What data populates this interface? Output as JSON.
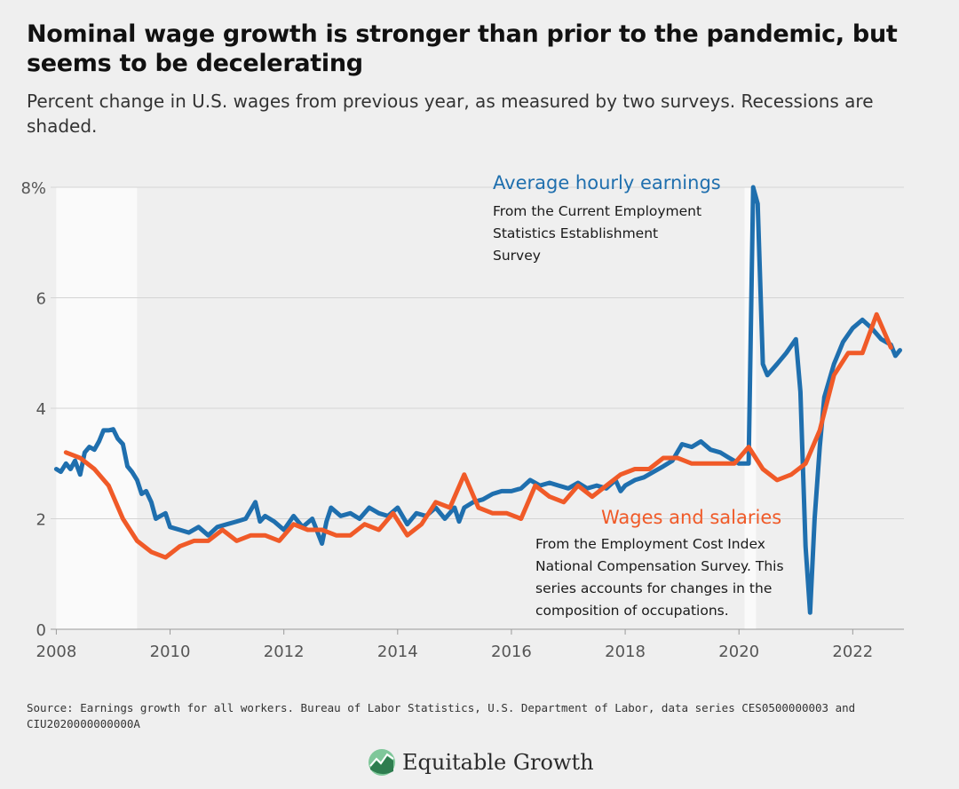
{
  "header": {
    "title": "Nominal wage growth is stronger than prior to the pandemic, but seems to be decelerating",
    "subtitle": "Percent change in U.S. wages from previous year, as measured by two surveys. Recessions are shaded."
  },
  "footer": {
    "source": "Source: Earnings growth for all workers. Bureau of Labor Statistics, U.S. Department of Labor, data series CES0500000003 and CIU2020000000000A",
    "brand": "Equitable Growth"
  },
  "colors": {
    "ahe": "#1f6fae",
    "eci": "#f05a28",
    "recession": "#fafafa",
    "grid": "#d4d4d4",
    "background": "#efefef",
    "logo_dark": "#2e7d4f",
    "logo_light": "#7fc79a"
  },
  "chart_data": {
    "type": "line",
    "title": "Nominal wage growth is stronger than prior to the pandemic, but seems to be decelerating",
    "subtitle": "Percent change in U.S. wages from previous year, as measured by two surveys. Recessions are shaded.",
    "xlabel": "",
    "ylabel": "",
    "xlim": [
      2007.9,
      2022.9
    ],
    "ylim": [
      0,
      8
    ],
    "x_ticks": [
      2008,
      2010,
      2012,
      2014,
      2016,
      2018,
      2020,
      2022
    ],
    "x_tick_labels": [
      "2008",
      "2010",
      "2012",
      "2014",
      "2016",
      "2018",
      "2020",
      "2022"
    ],
    "y_ticks": [
      0,
      2,
      4,
      6,
      8
    ],
    "y_tick_labels": [
      "0",
      "2",
      "4",
      "6",
      "8%"
    ],
    "grid": true,
    "recessions": [
      [
        2008.0,
        2009.42
      ],
      [
        2020.1,
        2020.3
      ]
    ],
    "series": [
      {
        "name": "Average hourly earnings",
        "note": "From the Current Employment Statistics Establishment Survey",
        "color": "#1f6fae",
        "x": [
          2008.0,
          2008.08,
          2008.17,
          2008.25,
          2008.33,
          2008.42,
          2008.5,
          2008.58,
          2008.67,
          2008.75,
          2008.83,
          2008.92,
          2009.0,
          2009.08,
          2009.17,
          2009.25,
          2009.33,
          2009.42,
          2009.5,
          2009.58,
          2009.67,
          2009.75,
          2009.83,
          2009.92,
          2010.0,
          2010.17,
          2010.33,
          2010.5,
          2010.67,
          2010.83,
          2011.0,
          2011.17,
          2011.33,
          2011.5,
          2011.58,
          2011.67,
          2011.83,
          2012.0,
          2012.17,
          2012.33,
          2012.5,
          2012.67,
          2012.75,
          2012.83,
          2013.0,
          2013.17,
          2013.33,
          2013.5,
          2013.67,
          2013.83,
          2014.0,
          2014.17,
          2014.33,
          2014.5,
          2014.67,
          2014.83,
          2015.0,
          2015.08,
          2015.17,
          2015.33,
          2015.5,
          2015.67,
          2015.83,
          2016.0,
          2016.17,
          2016.33,
          2016.5,
          2016.67,
          2016.83,
          2017.0,
          2017.17,
          2017.33,
          2017.5,
          2017.67,
          2017.83,
          2017.92,
          2018.0,
          2018.17,
          2018.33,
          2018.5,
          2018.67,
          2018.83,
          2019.0,
          2019.17,
          2019.33,
          2019.5,
          2019.67,
          2019.83,
          2020.0,
          2020.17,
          2020.25,
          2020.33,
          2020.42,
          2020.5,
          2020.67,
          2020.83,
          2021.0,
          2021.08,
          2021.17,
          2021.25,
          2021.33,
          2021.42,
          2021.5,
          2021.67,
          2021.83,
          2022.0,
          2022.17,
          2022.33,
          2022.5,
          2022.67,
          2022.75,
          2022.83
        ],
        "values": [
          2.9,
          2.85,
          3.0,
          2.9,
          3.05,
          2.8,
          3.2,
          3.3,
          3.25,
          3.4,
          3.6,
          3.6,
          3.62,
          3.45,
          3.35,
          2.95,
          2.85,
          2.7,
          2.45,
          2.5,
          2.3,
          2.0,
          2.05,
          2.1,
          1.85,
          1.8,
          1.75,
          1.85,
          1.7,
          1.85,
          1.9,
          1.95,
          2.0,
          2.3,
          1.95,
          2.05,
          1.95,
          1.8,
          2.05,
          1.85,
          2.0,
          1.55,
          1.95,
          2.2,
          2.05,
          2.1,
          2.0,
          2.2,
          2.1,
          2.05,
          2.2,
          1.9,
          2.1,
          2.05,
          2.2,
          2.0,
          2.2,
          1.95,
          2.2,
          2.3,
          2.35,
          2.45,
          2.5,
          2.5,
          2.55,
          2.7,
          2.6,
          2.65,
          2.6,
          2.55,
          2.65,
          2.55,
          2.6,
          2.55,
          2.7,
          2.5,
          2.6,
          2.7,
          2.75,
          2.85,
          2.95,
          3.05,
          3.35,
          3.3,
          3.4,
          3.25,
          3.2,
          3.1,
          3.0,
          3.0,
          8.0,
          7.7,
          4.8,
          4.6,
          4.8,
          5.0,
          5.25,
          4.3,
          1.5,
          0.3,
          2.0,
          3.3,
          4.2,
          4.8,
          5.2,
          5.45,
          5.6,
          5.45,
          5.25,
          5.15,
          4.95,
          5.05
        ]
      },
      {
        "name": "Wages and salaries",
        "note": "From the Employment Cost Index National Compensation Survey. This series accounts for changes in the composition of occupations.",
        "color": "#f05a28",
        "x": [
          2008.17,
          2008.42,
          2008.67,
          2008.92,
          2009.17,
          2009.42,
          2009.67,
          2009.92,
          2010.17,
          2010.42,
          2010.67,
          2010.92,
          2011.17,
          2011.42,
          2011.67,
          2011.92,
          2012.17,
          2012.42,
          2012.67,
          2012.92,
          2013.17,
          2013.42,
          2013.67,
          2013.92,
          2014.17,
          2014.42,
          2014.67,
          2014.92,
          2015.17,
          2015.42,
          2015.67,
          2015.92,
          2016.17,
          2016.42,
          2016.67,
          2016.92,
          2017.17,
          2017.42,
          2017.67,
          2017.92,
          2018.17,
          2018.42,
          2018.67,
          2018.92,
          2019.17,
          2019.42,
          2019.67,
          2019.92,
          2020.17,
          2020.42,
          2020.67,
          2020.92,
          2021.17,
          2021.42,
          2021.67,
          2021.92,
          2022.17,
          2022.42,
          2022.67
        ],
        "values": [
          3.2,
          3.1,
          2.9,
          2.6,
          2.0,
          1.6,
          1.4,
          1.3,
          1.5,
          1.6,
          1.6,
          1.8,
          1.6,
          1.7,
          1.7,
          1.6,
          1.9,
          1.8,
          1.8,
          1.7,
          1.7,
          1.9,
          1.8,
          2.1,
          1.7,
          1.9,
          2.3,
          2.2,
          2.8,
          2.2,
          2.1,
          2.1,
          2.0,
          2.6,
          2.4,
          2.3,
          2.6,
          2.4,
          2.6,
          2.8,
          2.9,
          2.9,
          3.1,
          3.1,
          3.0,
          3.0,
          3.0,
          3.0,
          3.3,
          2.9,
          2.7,
          2.8,
          3.0,
          3.6,
          4.6,
          5.0,
          5.0,
          5.7,
          5.1
        ]
      }
    ]
  }
}
